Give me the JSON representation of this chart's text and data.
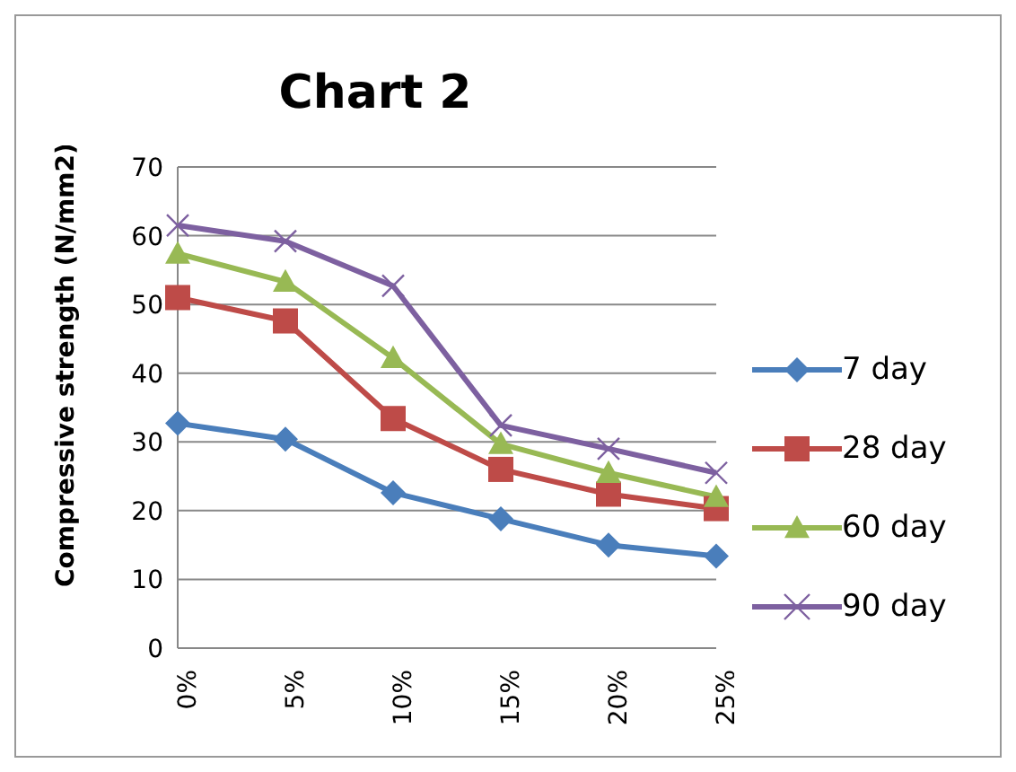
{
  "chart_data": {
    "type": "line",
    "title": "Chart 2",
    "ylabel": "Compressive strength (N/mm2)",
    "categories": [
      "0%",
      "5%",
      "10%",
      "15%",
      "20%",
      "25%"
    ],
    "series": [
      {
        "name": "7 day",
        "color": "#4a7ebb",
        "marker": "diamond",
        "values": [
          32.7,
          30.4,
          22.6,
          18.8,
          15,
          13.4
        ]
      },
      {
        "name": "28 day",
        "color": "#be4b48",
        "marker": "square",
        "values": [
          51,
          47.6,
          33.4,
          26,
          22.4,
          20.3
        ]
      },
      {
        "name": "60 day",
        "color": "#98b954",
        "marker": "triangle",
        "values": [
          57.4,
          53.3,
          42.2,
          29.7,
          25.5,
          22
        ]
      },
      {
        "name": "90 day",
        "color": "#7d60a0",
        "marker": "cross",
        "values": [
          61.5,
          59.2,
          52.7,
          32.4,
          29,
          25.5
        ]
      }
    ],
    "ylim": [
      0,
      70
    ],
    "yticks": [
      0,
      10,
      20,
      30,
      40,
      50,
      60,
      70
    ],
    "grid": "y",
    "legend": "right"
  }
}
